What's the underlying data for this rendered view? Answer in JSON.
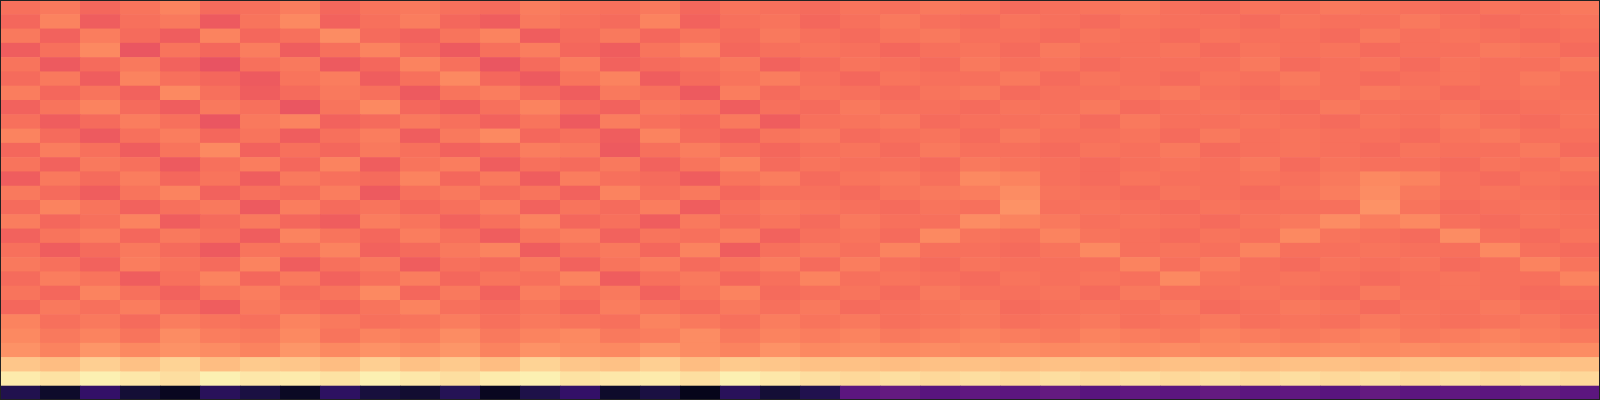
{
  "chart_data": {
    "type": "heatmap",
    "tick_labels": false,
    "color": "magma",
    "zlim": [
      0,
      1
    ],
    "values": [
      [
        0.7,
        0.72,
        0.68,
        0.71,
        0.74,
        0.69,
        0.7,
        0.73,
        0.68,
        0.71,
        0.72,
        0.7,
        0.69,
        0.73,
        0.71,
        0.7,
        0.72,
        0.68,
        0.71,
        0.7,
        0.69,
        0.71,
        0.7,
        0.72,
        0.71,
        0.69,
        0.7,
        0.71,
        0.72,
        0.7,
        0.69,
        0.71,
        0.7,
        0.72,
        0.71,
        0.7,
        0.69,
        0.71,
        0.7,
        0.72
      ],
      [
        0.68,
        0.74,
        0.66,
        0.7,
        0.72,
        0.65,
        0.71,
        0.75,
        0.67,
        0.7,
        0.73,
        0.68,
        0.66,
        0.72,
        0.7,
        0.69,
        0.74,
        0.67,
        0.7,
        0.71,
        0.68,
        0.7,
        0.72,
        0.7,
        0.69,
        0.71,
        0.7,
        0.69,
        0.71,
        0.7,
        0.7,
        0.69,
        0.71,
        0.7,
        0.7,
        0.72,
        0.7,
        0.69,
        0.7,
        0.71
      ],
      [
        0.72,
        0.67,
        0.73,
        0.69,
        0.66,
        0.74,
        0.68,
        0.7,
        0.76,
        0.69,
        0.67,
        0.71,
        0.74,
        0.66,
        0.69,
        0.72,
        0.68,
        0.71,
        0.69,
        0.72,
        0.7,
        0.69,
        0.71,
        0.72,
        0.7,
        0.7,
        0.69,
        0.71,
        0.7,
        0.69,
        0.71,
        0.7,
        0.7,
        0.69,
        0.72,
        0.7,
        0.71,
        0.7,
        0.69,
        0.7
      ],
      [
        0.66,
        0.7,
        0.75,
        0.64,
        0.71,
        0.68,
        0.73,
        0.66,
        0.7,
        0.74,
        0.69,
        0.65,
        0.7,
        0.73,
        0.68,
        0.66,
        0.71,
        0.74,
        0.68,
        0.7,
        0.71,
        0.7,
        0.68,
        0.7,
        0.71,
        0.69,
        0.72,
        0.7,
        0.7,
        0.71,
        0.69,
        0.71,
        0.7,
        0.71,
        0.69,
        0.7,
        0.7,
        0.72,
        0.71,
        0.69
      ],
      [
        0.71,
        0.65,
        0.69,
        0.72,
        0.67,
        0.63,
        0.7,
        0.72,
        0.65,
        0.68,
        0.74,
        0.7,
        0.64,
        0.69,
        0.73,
        0.67,
        0.69,
        0.7,
        0.72,
        0.67,
        0.69,
        0.71,
        0.7,
        0.69,
        0.72,
        0.7,
        0.71,
        0.69,
        0.7,
        0.7,
        0.7,
        0.72,
        0.69,
        0.7,
        0.71,
        0.69,
        0.71,
        0.7,
        0.7,
        0.72
      ],
      [
        0.69,
        0.72,
        0.66,
        0.74,
        0.7,
        0.68,
        0.65,
        0.71,
        0.73,
        0.66,
        0.7,
        0.75,
        0.68,
        0.65,
        0.71,
        0.74,
        0.66,
        0.69,
        0.71,
        0.73,
        0.7,
        0.68,
        0.71,
        0.7,
        0.7,
        0.72,
        0.69,
        0.71,
        0.7,
        0.69,
        0.71,
        0.7,
        0.72,
        0.7,
        0.69,
        0.7,
        0.71,
        0.7,
        0.72,
        0.7
      ],
      [
        0.73,
        0.68,
        0.71,
        0.67,
        0.75,
        0.7,
        0.66,
        0.69,
        0.72,
        0.7,
        0.65,
        0.71,
        0.73,
        0.69,
        0.66,
        0.72,
        0.7,
        0.65,
        0.73,
        0.69,
        0.71,
        0.7,
        0.69,
        0.71,
        0.72,
        0.69,
        0.7,
        0.7,
        0.71,
        0.72,
        0.7,
        0.69,
        0.71,
        0.7,
        0.72,
        0.71,
        0.69,
        0.7,
        0.71,
        0.7
      ],
      [
        0.67,
        0.71,
        0.74,
        0.69,
        0.66,
        0.72,
        0.7,
        0.64,
        0.71,
        0.75,
        0.68,
        0.66,
        0.7,
        0.74,
        0.69,
        0.67,
        0.72,
        0.71,
        0.66,
        0.7,
        0.69,
        0.72,
        0.7,
        0.7,
        0.69,
        0.71,
        0.7,
        0.72,
        0.69,
        0.7,
        0.71,
        0.7,
        0.69,
        0.72,
        0.7,
        0.7,
        0.71,
        0.69,
        0.7,
        0.71
      ],
      [
        0.7,
        0.66,
        0.69,
        0.73,
        0.7,
        0.64,
        0.72,
        0.74,
        0.67,
        0.69,
        0.72,
        0.7,
        0.67,
        0.71,
        0.65,
        0.73,
        0.7,
        0.68,
        0.72,
        0.66,
        0.7,
        0.71,
        0.72,
        0.69,
        0.7,
        0.7,
        0.71,
        0.69,
        0.72,
        0.7,
        0.7,
        0.71,
        0.7,
        0.69,
        0.71,
        0.7,
        0.72,
        0.7,
        0.69,
        0.71
      ],
      [
        0.74,
        0.69,
        0.65,
        0.7,
        0.73,
        0.68,
        0.71,
        0.66,
        0.7,
        0.73,
        0.66,
        0.72,
        0.75,
        0.68,
        0.7,
        0.66,
        0.74,
        0.69,
        0.67,
        0.71,
        0.72,
        0.69,
        0.7,
        0.71,
        0.69,
        0.72,
        0.7,
        0.7,
        0.71,
        0.69,
        0.72,
        0.7,
        0.71,
        0.7,
        0.7,
        0.69,
        0.71,
        0.72,
        0.7,
        0.7
      ],
      [
        0.68,
        0.73,
        0.7,
        0.66,
        0.71,
        0.75,
        0.67,
        0.7,
        0.68,
        0.72,
        0.7,
        0.67,
        0.69,
        0.73,
        0.72,
        0.65,
        0.7,
        0.73,
        0.7,
        0.68,
        0.7,
        0.71,
        0.69,
        0.72,
        0.7,
        0.7,
        0.69,
        0.71,
        0.7,
        0.72,
        0.69,
        0.7,
        0.71,
        0.7,
        0.69,
        0.71,
        0.7,
        0.7,
        0.72,
        0.69
      ],
      [
        0.71,
        0.67,
        0.72,
        0.7,
        0.65,
        0.7,
        0.73,
        0.68,
        0.74,
        0.66,
        0.71,
        0.73,
        0.66,
        0.7,
        0.69,
        0.72,
        0.67,
        0.71,
        0.74,
        0.69,
        0.71,
        0.7,
        0.7,
        0.69,
        0.72,
        0.71,
        0.7,
        0.69,
        0.7,
        0.71,
        0.7,
        0.72,
        0.69,
        0.71,
        0.7,
        0.7,
        0.69,
        0.71,
        0.7,
        0.72
      ],
      [
        0.66,
        0.72,
        0.69,
        0.73,
        0.68,
        0.71,
        0.66,
        0.72,
        0.7,
        0.69,
        0.74,
        0.68,
        0.72,
        0.66,
        0.73,
        0.7,
        0.69,
        0.66,
        0.71,
        0.73,
        0.69,
        0.71,
        0.72,
        0.7,
        0.75,
        0.74,
        0.7,
        0.69,
        0.71,
        0.7,
        0.7,
        0.71,
        0.7,
        0.72,
        0.75,
        0.74,
        0.7,
        0.69,
        0.71,
        0.7
      ],
      [
        0.72,
        0.69,
        0.66,
        0.71,
        0.74,
        0.67,
        0.7,
        0.69,
        0.73,
        0.65,
        0.7,
        0.72,
        0.69,
        0.71,
        0.67,
        0.74,
        0.7,
        0.72,
        0.68,
        0.7,
        0.7,
        0.69,
        0.71,
        0.72,
        0.73,
        0.76,
        0.71,
        0.7,
        0.69,
        0.71,
        0.7,
        0.69,
        0.71,
        0.73,
        0.76,
        0.72,
        0.7,
        0.71,
        0.7,
        0.69
      ],
      [
        0.69,
        0.74,
        0.71,
        0.67,
        0.7,
        0.72,
        0.65,
        0.73,
        0.69,
        0.71,
        0.68,
        0.7,
        0.73,
        0.67,
        0.71,
        0.69,
        0.73,
        0.66,
        0.7,
        0.72,
        0.71,
        0.7,
        0.69,
        0.71,
        0.7,
        0.77,
        0.7,
        0.71,
        0.7,
        0.69,
        0.71,
        0.7,
        0.7,
        0.7,
        0.77,
        0.71,
        0.69,
        0.7,
        0.71,
        0.7
      ],
      [
        0.73,
        0.68,
        0.7,
        0.74,
        0.66,
        0.69,
        0.72,
        0.68,
        0.66,
        0.73,
        0.71,
        0.67,
        0.7,
        0.74,
        0.68,
        0.7,
        0.66,
        0.72,
        0.69,
        0.71,
        0.69,
        0.72,
        0.7,
        0.7,
        0.76,
        0.74,
        0.72,
        0.7,
        0.71,
        0.7,
        0.69,
        0.71,
        0.72,
        0.76,
        0.73,
        0.75,
        0.7,
        0.69,
        0.71,
        0.7
      ],
      [
        0.67,
        0.71,
        0.73,
        0.68,
        0.72,
        0.7,
        0.66,
        0.74,
        0.71,
        0.68,
        0.73,
        0.7,
        0.66,
        0.71,
        0.73,
        0.67,
        0.71,
        0.7,
        0.73,
        0.67,
        0.7,
        0.71,
        0.69,
        0.75,
        0.71,
        0.7,
        0.74,
        0.71,
        0.7,
        0.69,
        0.71,
        0.7,
        0.75,
        0.71,
        0.7,
        0.69,
        0.76,
        0.7,
        0.69,
        0.71
      ],
      [
        0.7,
        0.66,
        0.69,
        0.72,
        0.69,
        0.65,
        0.71,
        0.7,
        0.74,
        0.67,
        0.69,
        0.72,
        0.74,
        0.66,
        0.7,
        0.72,
        0.68,
        0.74,
        0.66,
        0.7,
        0.72,
        0.7,
        0.74,
        0.7,
        0.7,
        0.69,
        0.71,
        0.75,
        0.7,
        0.71,
        0.7,
        0.74,
        0.7,
        0.7,
        0.71,
        0.7,
        0.7,
        0.75,
        0.7,
        0.69
      ],
      [
        0.72,
        0.7,
        0.67,
        0.73,
        0.71,
        0.69,
        0.74,
        0.66,
        0.7,
        0.72,
        0.66,
        0.7,
        0.69,
        0.72,
        0.67,
        0.71,
        0.73,
        0.69,
        0.71,
        0.73,
        0.69,
        0.73,
        0.7,
        0.69,
        0.71,
        0.7,
        0.7,
        0.7,
        0.74,
        0.7,
        0.73,
        0.7,
        0.69,
        0.71,
        0.7,
        0.71,
        0.69,
        0.7,
        0.74,
        0.71
      ],
      [
        0.69,
        0.73,
        0.71,
        0.66,
        0.7,
        0.74,
        0.68,
        0.72,
        0.67,
        0.7,
        0.73,
        0.68,
        0.71,
        0.7,
        0.74,
        0.66,
        0.7,
        0.72,
        0.68,
        0.7,
        0.74,
        0.7,
        0.71,
        0.7,
        0.69,
        0.71,
        0.7,
        0.71,
        0.7,
        0.75,
        0.71,
        0.7,
        0.71,
        0.7,
        0.69,
        0.7,
        0.71,
        0.7,
        0.7,
        0.74
      ],
      [
        0.71,
        0.68,
        0.74,
        0.7,
        0.67,
        0.71,
        0.73,
        0.69,
        0.71,
        0.75,
        0.68,
        0.72,
        0.67,
        0.73,
        0.7,
        0.72,
        0.67,
        0.71,
        0.74,
        0.69,
        0.7,
        0.71,
        0.69,
        0.72,
        0.7,
        0.7,
        0.71,
        0.69,
        0.72,
        0.7,
        0.7,
        0.71,
        0.7,
        0.69,
        0.72,
        0.7,
        0.71,
        0.7,
        0.69,
        0.7
      ],
      [
        0.68,
        0.72,
        0.7,
        0.73,
        0.69,
        0.66,
        0.72,
        0.7,
        0.68,
        0.71,
        0.74,
        0.7,
        0.69,
        0.71,
        0.68,
        0.73,
        0.71,
        0.69,
        0.72,
        0.7,
        0.72,
        0.69,
        0.7,
        0.71,
        0.72,
        0.69,
        0.7,
        0.71,
        0.7,
        0.72,
        0.69,
        0.7,
        0.72,
        0.71,
        0.69,
        0.71,
        0.7,
        0.72,
        0.7,
        0.69
      ],
      [
        0.74,
        0.7,
        0.72,
        0.69,
        0.73,
        0.71,
        0.7,
        0.74,
        0.72,
        0.7,
        0.71,
        0.73,
        0.7,
        0.72,
        0.71,
        0.7,
        0.74,
        0.72,
        0.7,
        0.73,
        0.71,
        0.72,
        0.7,
        0.71,
        0.72,
        0.7,
        0.71,
        0.72,
        0.7,
        0.71,
        0.72,
        0.7,
        0.71,
        0.7,
        0.72,
        0.71,
        0.7,
        0.71,
        0.72,
        0.7
      ],
      [
        0.75,
        0.72,
        0.74,
        0.71,
        0.76,
        0.73,
        0.72,
        0.75,
        0.71,
        0.74,
        0.73,
        0.76,
        0.72,
        0.74,
        0.75,
        0.72,
        0.73,
        0.76,
        0.72,
        0.74,
        0.73,
        0.74,
        0.72,
        0.73,
        0.74,
        0.73,
        0.72,
        0.74,
        0.73,
        0.72,
        0.74,
        0.73,
        0.72,
        0.73,
        0.74,
        0.72,
        0.73,
        0.74,
        0.73,
        0.72
      ],
      [
        0.77,
        0.74,
        0.78,
        0.75,
        0.77,
        0.76,
        0.74,
        0.78,
        0.75,
        0.77,
        0.76,
        0.78,
        0.74,
        0.77,
        0.76,
        0.75,
        0.78,
        0.76,
        0.74,
        0.77,
        0.75,
        0.76,
        0.75,
        0.76,
        0.75,
        0.76,
        0.75,
        0.76,
        0.75,
        0.76,
        0.75,
        0.76,
        0.75,
        0.76,
        0.75,
        0.76,
        0.75,
        0.76,
        0.75,
        0.76
      ],
      [
        0.88,
        0.86,
        0.9,
        0.87,
        0.91,
        0.86,
        0.89,
        0.88,
        0.86,
        0.9,
        0.87,
        0.89,
        0.86,
        0.91,
        0.88,
        0.87,
        0.9,
        0.86,
        0.89,
        0.88,
        0.87,
        0.87,
        0.86,
        0.87,
        0.87,
        0.86,
        0.87,
        0.87,
        0.86,
        0.87,
        0.87,
        0.86,
        0.87,
        0.87,
        0.86,
        0.87,
        0.87,
        0.86,
        0.87,
        0.87
      ],
      [
        0.96,
        0.94,
        0.97,
        0.95,
        0.93,
        0.97,
        0.95,
        0.96,
        0.94,
        0.97,
        0.95,
        0.93,
        0.96,
        0.97,
        0.94,
        0.95,
        0.96,
        0.93,
        0.97,
        0.95,
        0.93,
        0.92,
        0.93,
        0.92,
        0.93,
        0.92,
        0.93,
        0.92,
        0.93,
        0.92,
        0.93,
        0.92,
        0.93,
        0.92,
        0.93,
        0.92,
        0.93,
        0.92,
        0.93,
        0.92
      ],
      [
        0.14,
        0.08,
        0.18,
        0.1,
        0.06,
        0.16,
        0.12,
        0.07,
        0.17,
        0.11,
        0.09,
        0.15,
        0.06,
        0.13,
        0.18,
        0.08,
        0.12,
        0.05,
        0.16,
        0.1,
        0.14,
        0.28,
        0.3,
        0.27,
        0.29,
        0.28,
        0.3,
        0.27,
        0.29,
        0.28,
        0.3,
        0.28,
        0.29,
        0.27,
        0.3,
        0.28,
        0.29,
        0.28,
        0.3,
        0.28
      ]
    ]
  }
}
